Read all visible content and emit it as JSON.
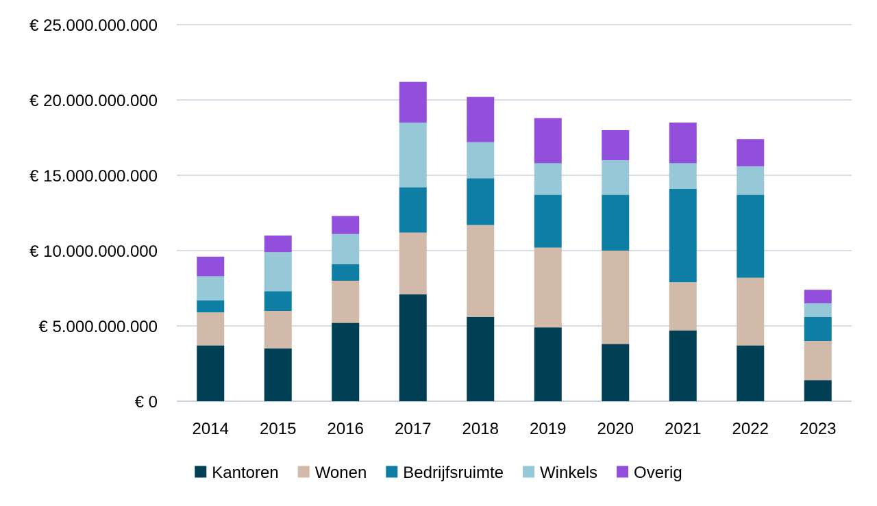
{
  "chart_data": {
    "type": "bar",
    "stacked": true,
    "categories": [
      "2014",
      "2015",
      "2016",
      "2017",
      "2018",
      "2019",
      "2020",
      "2021",
      "2022",
      "2023"
    ],
    "series": [
      {
        "name": "Kantoren",
        "color": "#003f54",
        "values": [
          3700000000,
          3500000000,
          5200000000,
          7100000000,
          5600000000,
          4900000000,
          3800000000,
          4700000000,
          3700000000,
          1400000000
        ]
      },
      {
        "name": "Wonen",
        "color": "#d1baa9",
        "values": [
          2200000000,
          2500000000,
          2800000000,
          4100000000,
          6100000000,
          5300000000,
          6200000000,
          3200000000,
          4500000000,
          2600000000
        ]
      },
      {
        "name": "Bedrijfsruimte",
        "color": "#0e7ea5",
        "values": [
          800000000,
          1300000000,
          1100000000,
          3000000000,
          3100000000,
          3500000000,
          3700000000,
          6200000000,
          5500000000,
          1600000000
        ]
      },
      {
        "name": "Winkels",
        "color": "#97c8d8",
        "values": [
          1600000000,
          2600000000,
          2000000000,
          4300000000,
          2400000000,
          2100000000,
          2300000000,
          1700000000,
          1900000000,
          900000000
        ]
      },
      {
        "name": "Overig",
        "color": "#924fdc",
        "values": [
          1300000000,
          1100000000,
          1200000000,
          2700000000,
          3000000000,
          3000000000,
          2000000000,
          2700000000,
          1800000000,
          900000000
        ]
      }
    ],
    "y_ticks": [
      {
        "value": 0,
        "label": "€ 0"
      },
      {
        "value": 5000000000,
        "label": "€ 5.000.000.000"
      },
      {
        "value": 10000000000,
        "label": "€ 10.000.000.000"
      },
      {
        "value": 15000000000,
        "label": "€ 15.000.000.000"
      },
      {
        "value": 20000000000,
        "label": "€ 20.000.000.000"
      },
      {
        "value": 25000000000,
        "label": "€ 25.000.000.000"
      }
    ],
    "ylim": [
      0,
      25000000000
    ],
    "grid": true,
    "gridline_color": "#d6dee8",
    "axis_color": "#c8d2de",
    "legend_position": "bottom",
    "title": "",
    "xlabel": "",
    "ylabel": ""
  }
}
